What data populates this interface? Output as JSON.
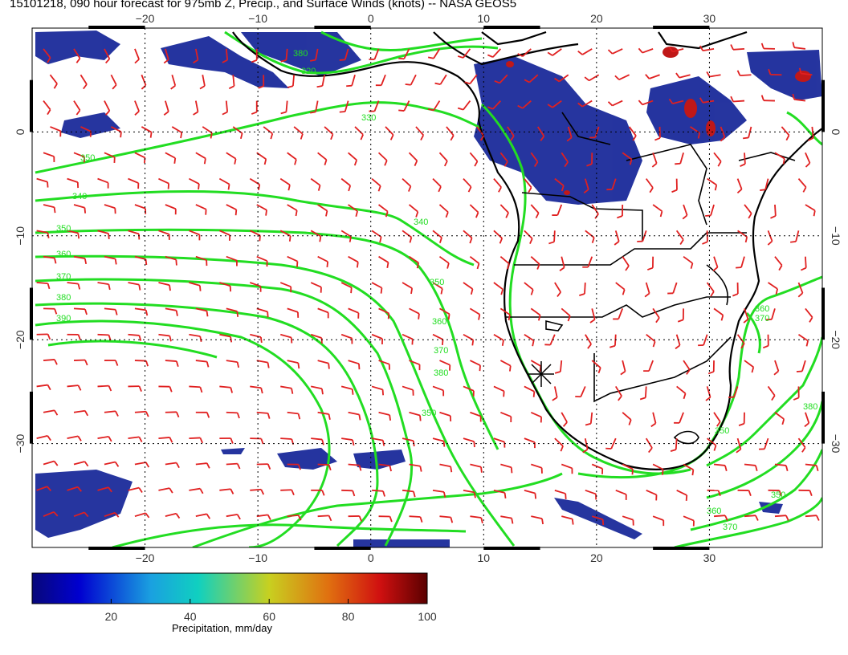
{
  "title": "15101218, 090 hour forecast for 975mb Z, Precip., and Surface Winds (knots) -- NASA GEOS5",
  "map": {
    "lon_range": [
      -30,
      40
    ],
    "lat_range": [
      -40,
      10
    ],
    "lon_ticks": [
      "−20",
      "−10",
      "0",
      "10",
      "20",
      "30"
    ],
    "lat_ticks": [
      "0",
      "−10",
      "−20",
      "−30"
    ],
    "contour_labels": [
      "350",
      "340",
      "350",
      "360",
      "370",
      "380",
      "390",
      "340",
      "350",
      "360",
      "370",
      "380",
      "350",
      "360",
      "370",
      "350",
      "380",
      "370",
      "360",
      "350",
      "330",
      "320",
      "380"
    ],
    "colors": {
      "contour": "#22dd22",
      "barb": "#e02020",
      "coast": "#000000",
      "precip_low": "#1a2a8a",
      "precip_high": "#c01010"
    }
  },
  "colorbar": {
    "label": "Precipitation, mm/day",
    "ticks": [
      "20",
      "40",
      "60",
      "80",
      "100"
    ],
    "range": [
      0,
      100
    ]
  }
}
